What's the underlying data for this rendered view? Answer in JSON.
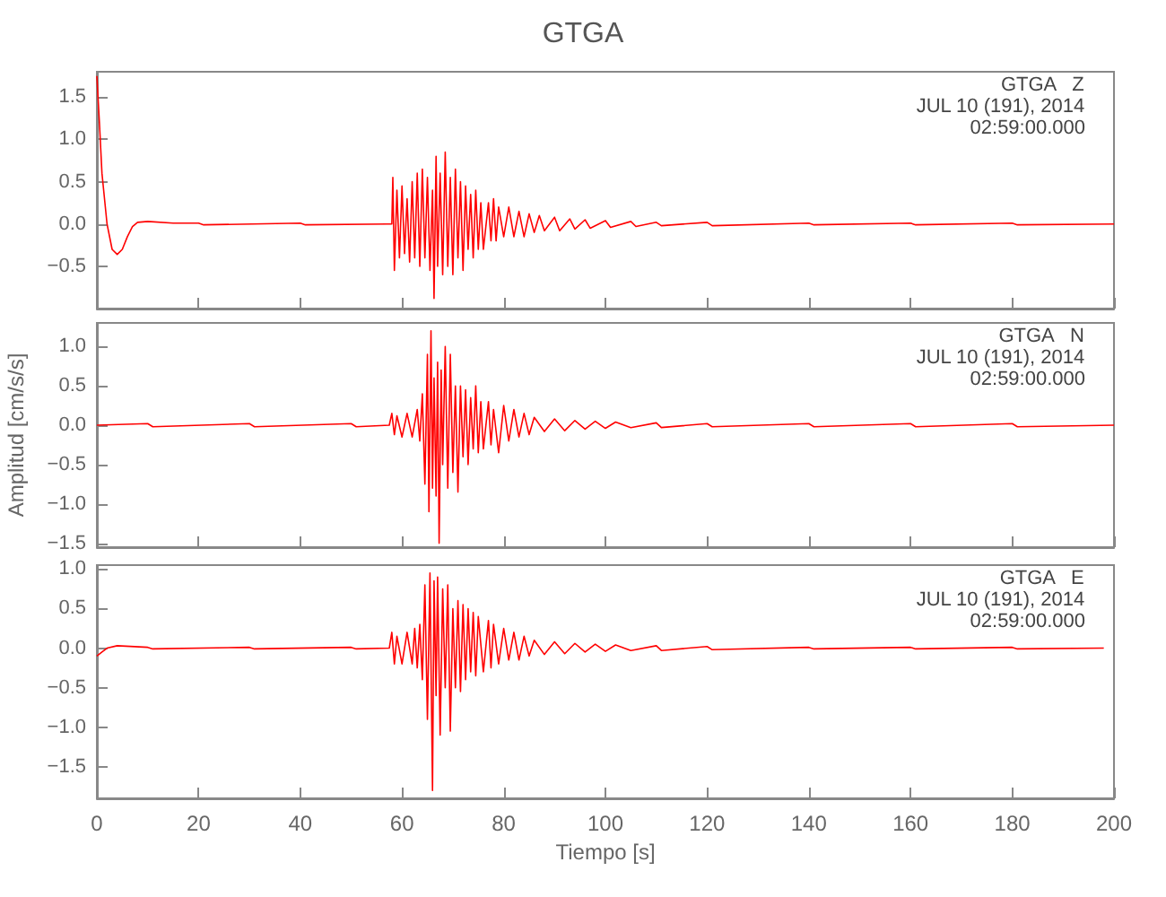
{
  "chart_data": [
    {
      "type": "line",
      "title": "GTGA",
      "annotations": [
        "GTGA   Z",
        "JUL 10 (191), 2014",
        "02:59:00.000"
      ],
      "tick_labels": "y",
      "grid": false,
      "xlim": [
        0,
        200
      ],
      "xticks": [
        0,
        20,
        40,
        60,
        80,
        100,
        120,
        140,
        160,
        180,
        200
      ],
      "ylim": [
        -1.0,
        1.8
      ],
      "yticks": [
        {
          "value": 1.5,
          "label": "1.5"
        },
        {
          "value": 1.0,
          "label": "1.0"
        },
        {
          "value": 0.5,
          "label": "0.5"
        },
        {
          "value": 0,
          "label": "0.0"
        },
        {
          "value": -0.5,
          "label": "−0.5"
        }
      ],
      "series": [
        {
          "color": "#ff0000",
          "x": [
            0,
            0.5,
            1,
            2,
            3,
            4,
            5,
            6,
            7,
            8,
            10,
            15,
            20,
            21,
            40,
            41,
            57,
            58,
            58.2,
            58.5,
            59,
            59.5,
            60,
            60.5,
            61,
            61.5,
            62,
            62.5,
            63,
            63.5,
            64,
            64.5,
            65,
            65.5,
            66,
            66.3,
            66.7,
            67,
            67.5,
            68,
            68.5,
            69,
            69.5,
            70,
            70.5,
            71,
            71.5,
            72,
            72.5,
            73,
            73.5,
            74,
            74.5,
            75,
            75.5,
            76,
            77,
            77.5,
            78,
            78.5,
            79,
            80,
            81,
            82,
            83,
            84,
            85,
            86,
            87,
            88,
            90,
            91,
            93,
            94,
            96,
            97,
            100,
            101,
            105,
            106,
            110,
            111,
            120,
            121,
            140,
            141,
            160,
            161,
            180,
            181,
            200
          ],
          "values": [
            1.75,
            1.2,
            0.6,
            0.0,
            -0.3,
            -0.36,
            -0.3,
            -0.15,
            -0.03,
            0.02,
            0.03,
            0.01,
            0.01,
            -0.01,
            0.01,
            -0.01,
            0.0,
            0.0,
            0.55,
            -0.55,
            0.4,
            -0.4,
            0.45,
            -0.35,
            0.3,
            -0.45,
            0.5,
            -0.4,
            0.6,
            -0.5,
            0.65,
            -0.4,
            0.55,
            -0.55,
            0.4,
            -0.88,
            0.8,
            -0.5,
            0.6,
            -0.6,
            0.85,
            -0.5,
            0.55,
            -0.6,
            0.65,
            -0.4,
            0.5,
            -0.55,
            0.45,
            -0.3,
            0.35,
            -0.4,
            0.4,
            -0.3,
            0.25,
            -0.3,
            0.25,
            -0.2,
            0.3,
            -0.2,
            0.2,
            -0.15,
            0.2,
            -0.15,
            0.15,
            -0.15,
            0.12,
            -0.1,
            0.1,
            -0.08,
            0.08,
            -0.08,
            0.06,
            -0.06,
            0.05,
            -0.05,
            0.04,
            -0.04,
            0.03,
            -0.03,
            0.02,
            -0.02,
            0.02,
            -0.02,
            0.01,
            -0.01,
            0.01,
            -0.01,
            0.01,
            -0.01,
            0.0
          ]
        }
      ]
    },
    {
      "type": "line",
      "ylabel": "Amplitud [cm/s/s]",
      "annotations": [
        "GTGA   N",
        "JUL 10 (191), 2014",
        "02:59:00.000"
      ],
      "tick_labels": "y",
      "grid": false,
      "xlim": [
        0,
        200
      ],
      "xticks": [
        0,
        20,
        40,
        60,
        80,
        100,
        120,
        140,
        160,
        180,
        200
      ],
      "ylim": [
        -1.55,
        1.3
      ],
      "yticks": [
        {
          "value": 1.0,
          "label": "1.0"
        },
        {
          "value": 0.5,
          "label": "0.5"
        },
        {
          "value": 0,
          "label": "0.0"
        },
        {
          "value": -0.5,
          "label": "−0.5"
        },
        {
          "value": -1.0,
          "label": "−1.0"
        },
        {
          "value": -1.5,
          "label": "−1.5"
        }
      ],
      "series": [
        {
          "color": "#ff0000",
          "x": [
            0,
            10,
            11,
            30,
            31,
            50,
            51,
            57.5,
            58,
            58.5,
            59,
            60,
            61,
            62,
            63,
            63.5,
            64,
            64.5,
            65,
            65.3,
            65.7,
            66,
            66.3,
            66.7,
            67,
            67.3,
            67.7,
            68,
            68.5,
            69,
            69.5,
            70,
            70.5,
            71,
            71.5,
            72,
            72.5,
            73,
            73.5,
            74,
            74.5,
            75,
            75.5,
            76,
            77,
            77.5,
            78,
            79,
            80,
            81,
            82,
            83,
            84,
            85,
            86,
            88,
            90,
            92,
            94,
            96,
            98,
            100,
            102,
            105,
            110,
            111,
            120,
            121,
            140,
            141,
            160,
            161,
            180,
            181,
            200
          ],
          "values": [
            0.0,
            0.02,
            -0.02,
            0.02,
            -0.02,
            0.02,
            -0.02,
            0.0,
            0.15,
            -0.12,
            0.12,
            -0.15,
            0.15,
            -0.15,
            0.2,
            -0.2,
            0.4,
            -0.75,
            0.9,
            -1.1,
            1.2,
            -0.8,
            0.6,
            -0.9,
            0.8,
            -1.5,
            0.7,
            -0.5,
            1.0,
            -0.8,
            0.9,
            -0.6,
            0.5,
            -0.85,
            0.5,
            -0.4,
            0.45,
            -0.5,
            0.35,
            -0.3,
            0.5,
            -0.35,
            0.3,
            -0.3,
            0.3,
            -0.25,
            0.2,
            -0.35,
            0.25,
            -0.2,
            0.2,
            -0.15,
            0.15,
            -0.12,
            0.1,
            -0.08,
            0.08,
            -0.07,
            0.06,
            -0.05,
            0.05,
            -0.04,
            0.04,
            -0.03,
            0.03,
            -0.03,
            0.02,
            -0.02,
            0.02,
            -0.02,
            0.02,
            -0.02,
            0.02,
            -0.02,
            0.0
          ]
        }
      ]
    },
    {
      "type": "line",
      "xlabel": "Tiempo [s]",
      "annotations": [
        "GTGA   E",
        "JUL 10 (191), 2014",
        "02:59:00.000"
      ],
      "grid": false,
      "xlim": [
        0,
        200
      ],
      "xticks": [
        0,
        20,
        40,
        60,
        80,
        100,
        120,
        140,
        160,
        180,
        200
      ],
      "ylim": [
        -1.9,
        1.05
      ],
      "yticks": [
        {
          "value": 1.0,
          "label": "1.0"
        },
        {
          "value": 0.5,
          "label": "0.5"
        },
        {
          "value": 0,
          "label": "0.0"
        },
        {
          "value": -0.5,
          "label": "−0.5"
        },
        {
          "value": -1.0,
          "label": "−1.0"
        },
        {
          "value": -1.5,
          "label": "−1.5"
        }
      ],
      "series": [
        {
          "color": "#ff0000",
          "x": [
            0,
            1,
            2,
            4,
            10,
            11,
            30,
            31,
            50,
            51,
            57.5,
            58,
            58.5,
            59,
            60,
            61,
            62,
            62.5,
            63,
            63.5,
            64,
            64.5,
            65,
            65.5,
            66,
            66.3,
            66.7,
            67,
            67.5,
            68,
            68.5,
            69,
            69.5,
            70,
            70.5,
            71,
            71.5,
            72,
            72.5,
            73,
            73.5,
            74,
            74.5,
            75,
            76,
            77,
            77.5,
            78,
            79,
            80,
            81,
            82,
            83,
            84,
            85,
            86,
            88,
            90,
            92,
            94,
            96,
            98,
            100,
            102,
            105,
            110,
            111,
            120,
            121,
            140,
            141,
            160,
            161,
            180,
            181,
            198
          ],
          "values": [
            -0.1,
            -0.05,
            0.0,
            0.03,
            0.01,
            -0.01,
            0.01,
            -0.01,
            0.01,
            -0.01,
            0.0,
            0.2,
            -0.2,
            0.15,
            -0.2,
            0.2,
            -0.2,
            0.25,
            -0.25,
            0.3,
            -0.4,
            0.8,
            -0.9,
            0.95,
            -1.8,
            0.85,
            -0.6,
            0.9,
            -1.1,
            0.75,
            -0.5,
            0.8,
            -1.05,
            0.5,
            -0.5,
            0.6,
            -0.55,
            0.55,
            -0.4,
            0.5,
            -0.3,
            0.45,
            -0.35,
            0.4,
            -0.3,
            0.35,
            -0.25,
            0.3,
            -0.2,
            0.25,
            -0.15,
            0.2,
            -0.15,
            0.15,
            -0.1,
            0.1,
            -0.08,
            0.08,
            -0.07,
            0.06,
            -0.05,
            0.05,
            -0.04,
            0.04,
            -0.03,
            0.03,
            -0.03,
            0.02,
            -0.02,
            0.01,
            -0.01,
            0.01,
            -0.01,
            0.01,
            -0.01,
            0.0
          ]
        }
      ]
    }
  ]
}
